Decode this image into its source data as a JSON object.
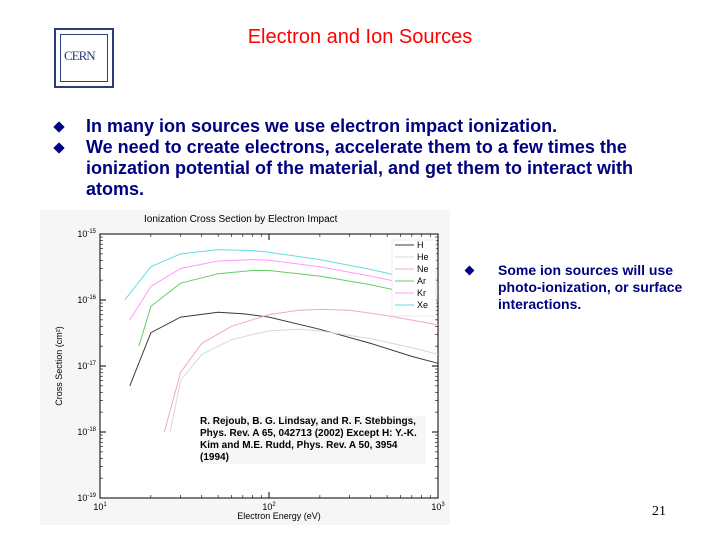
{
  "logo": {
    "text": "CERN"
  },
  "title": "Electron and Ion Sources",
  "bullets": [
    "In many ion sources we use electron impact ionization.",
    "We need to create electrons, accelerate them to a few times the ionization potential of the material, and get them to interact with atoms."
  ],
  "chart_data": {
    "type": "line",
    "title": "Ionization Cross Section by Electron Impact",
    "xlabel": "Electron Energy (eV)",
    "ylabel": "Cross Section (cm²)",
    "x_scale": "log",
    "y_scale": "log",
    "xlim": [
      10,
      1000
    ],
    "ylim": [
      1e-19,
      1e-15
    ],
    "x_ticks": [
      {
        "base": "10",
        "exp": "1"
      },
      {
        "base": "10",
        "exp": "2"
      },
      {
        "base": "10",
        "exp": "3"
      }
    ],
    "y_ticks": [
      {
        "base": "10",
        "exp": "-15"
      },
      {
        "base": "10",
        "exp": "-16"
      },
      {
        "base": "10",
        "exp": "-17"
      },
      {
        "base": "10",
        "exp": "-18"
      },
      {
        "base": "10",
        "exp": "-19"
      }
    ],
    "legend_position": "top-right",
    "series": [
      {
        "name": "H",
        "color": "#3a3a3a",
        "points": [
          [
            15,
            5e-18
          ],
          [
            20,
            3.2e-17
          ],
          [
            30,
            5.5e-17
          ],
          [
            50,
            6.5e-17
          ],
          [
            70,
            6.2e-17
          ],
          [
            100,
            5.5e-17
          ],
          [
            200,
            3.6e-17
          ],
          [
            400,
            2.2e-17
          ],
          [
            700,
            1.4e-17
          ],
          [
            1000,
            1.1e-17
          ]
        ]
      },
      {
        "name": "He",
        "color": "#d8d8d8",
        "points": [
          [
            26,
            1e-18
          ],
          [
            30,
            6e-18
          ],
          [
            40,
            1.5e-17
          ],
          [
            60,
            2.5e-17
          ],
          [
            80,
            3e-17
          ],
          [
            100,
            3.4e-17
          ],
          [
            150,
            3.6e-17
          ],
          [
            200,
            3.4e-17
          ],
          [
            400,
            2.6e-17
          ],
          [
            700,
            1.9e-17
          ],
          [
            1000,
            1.5e-17
          ]
        ]
      },
      {
        "name": "Ne",
        "color": "#f2a8c8",
        "points": [
          [
            24,
            1e-18
          ],
          [
            30,
            8e-18
          ],
          [
            40,
            2.2e-17
          ],
          [
            60,
            4e-17
          ],
          [
            100,
            6e-17
          ],
          [
            150,
            7e-17
          ],
          [
            200,
            7.2e-17
          ],
          [
            300,
            7e-17
          ],
          [
            500,
            5.8e-17
          ],
          [
            1000,
            4.2e-17
          ]
        ]
      },
      {
        "name": "Ar",
        "color": "#66cc66",
        "points": [
          [
            17,
            2e-17
          ],
          [
            20,
            8e-17
          ],
          [
            30,
            1.8e-16
          ],
          [
            50,
            2.5e-16
          ],
          [
            80,
            2.8e-16
          ],
          [
            100,
            2.8e-16
          ],
          [
            200,
            2.3e-16
          ],
          [
            400,
            1.7e-16
          ],
          [
            700,
            1.25e-16
          ],
          [
            1000,
            1e-16
          ]
        ]
      },
      {
        "name": "Kr",
        "color": "#ff99ff",
        "points": [
          [
            15,
            5e-17
          ],
          [
            20,
            1.6e-16
          ],
          [
            30,
            3e-16
          ],
          [
            50,
            3.9e-16
          ],
          [
            80,
            4.1e-16
          ],
          [
            100,
            4e-16
          ],
          [
            200,
            3.2e-16
          ],
          [
            400,
            2.3e-16
          ],
          [
            700,
            1.7e-16
          ],
          [
            1000,
            1.35e-16
          ]
        ]
      },
      {
        "name": "Xe",
        "color": "#66dddd",
        "points": [
          [
            14,
            1e-16
          ],
          [
            20,
            3.2e-16
          ],
          [
            30,
            5e-16
          ],
          [
            50,
            5.8e-16
          ],
          [
            80,
            5.6e-16
          ],
          [
            100,
            5.3e-16
          ],
          [
            200,
            4.1e-16
          ],
          [
            400,
            2.9e-16
          ],
          [
            700,
            2.1e-16
          ],
          [
            1000,
            1.7e-16
          ]
        ]
      }
    ]
  },
  "reference": "R. Rejoub, B. G. Lindsay, and R. F. Stebbings, Phys. Rev. A 65, 042713 (2002) Except H: Y.-K. Kim and M.E. Rudd, Phys. Rev. A 50, 3954 (1994)",
  "side_bullet": "Some ion sources will use photo-ionization, or surface interactions.",
  "page_number": "21"
}
